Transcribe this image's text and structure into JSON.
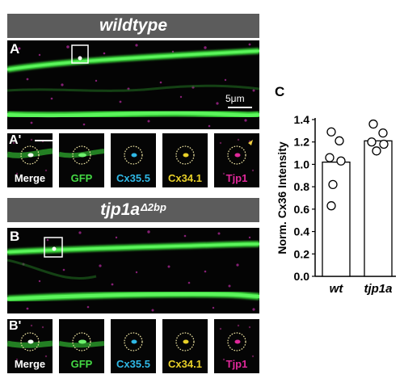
{
  "top": {
    "banner": "wildtype",
    "panel_label": "A",
    "scale_bar": "5μm",
    "row_label": "A'",
    "channels": [
      "Merge",
      "GFP",
      "Cx35.5",
      "Cx34.1",
      "Tjp1"
    ]
  },
  "bottom": {
    "banner_main": "tjp1a",
    "banner_super": "Δ2bp",
    "panel_label": "B",
    "row_label": "B'",
    "channels": [
      "Merge",
      "GFP",
      "Cx35.5",
      "Cx34.1",
      "Tjp1"
    ]
  },
  "channel_colors": {
    "Merge": "#ffffff",
    "GFP": "#44d944",
    "Cx35.5": "#2fb8e6",
    "Cx34.1": "#e8d028",
    "Tjp1": "#e0289a"
  },
  "chart_panel_label": "C",
  "chart_data": {
    "type": "bar",
    "ylabel": "Norm. Cx36 Intensity",
    "categories": [
      "wt",
      "tjp1a"
    ],
    "values": [
      1.02,
      1.21
    ],
    "points": [
      [
        1.29,
        1.21,
        1.06,
        1.03,
        0.82,
        0.63
      ],
      [
        1.36,
        1.28,
        1.2,
        1.18,
        1.12
      ]
    ],
    "ylim": [
      0,
      1.4
    ],
    "yticks": [
      "0.0",
      "0.2",
      "0.4",
      "0.6",
      "0.8",
      "1.0",
      "1.2",
      "1.4"
    ]
  }
}
